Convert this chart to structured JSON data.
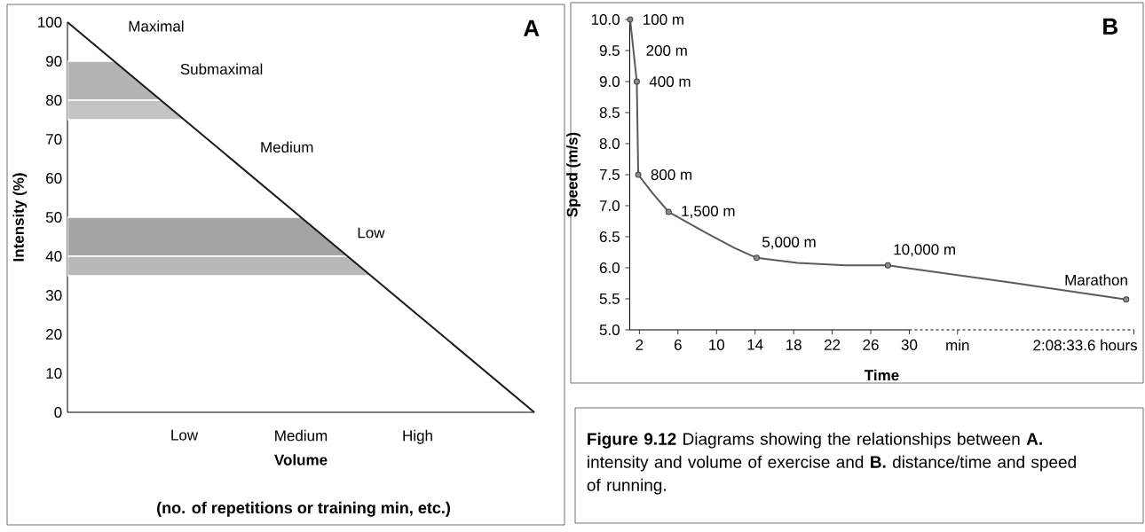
{
  "chart_data": [
    {
      "type": "line",
      "title": "A",
      "xlabel": "Volume",
      "ylabel": "Intensity (%)",
      "color": "#1a1a1a",
      "marker": "none",
      "categories": [
        null,
        "Low",
        "Medium",
        "High",
        null
      ],
      "values": [
        100,
        75,
        50,
        25,
        0
      ],
      "ylim": [
        0,
        100
      ],
      "yticks": [
        0,
        10,
        20,
        30,
        40,
        50,
        60,
        70,
        80,
        90,
        100
      ],
      "bands": [
        {
          "axis": "y",
          "from": 80,
          "to": 90,
          "color": "#b4b4b4"
        },
        {
          "axis": "y",
          "from": 75,
          "to": 80,
          "color": "#c4c4c4"
        },
        {
          "axis": "y",
          "from": 40,
          "to": 50,
          "color": "#a4a4a4"
        },
        {
          "axis": "y",
          "from": 35,
          "to": 40,
          "color": "#b8b8b8"
        }
      ],
      "annotations": [
        "(no. of repetitions or training min, etc.)",
        "Maximal",
        "Submaximal",
        "Medium",
        "Low"
      ]
    },
    {
      "type": "line",
      "title": "B",
      "xlabel": "Time",
      "ylabel": "Speed (m/s)",
      "xlim": [
        1,
        53.3
      ],
      "ylim": [
        5,
        10
      ],
      "xticks": [
        2,
        6,
        10,
        14,
        18,
        22,
        26,
        30,
        {
          "value": 35,
          "label": "min"
        },
        {
          "value": 53.3,
          "label": "2:08:33.6 hours"
        }
      ],
      "yticks": [
        {
          "value": 5,
          "label": "5.0"
        },
        {
          "value": 5.5,
          "label": "5.5"
        },
        {
          "value": 6,
          "label": "6.0"
        },
        {
          "value": 6.5,
          "label": "6.5"
        },
        {
          "value": 7,
          "label": "7.0"
        },
        {
          "value": 7.5,
          "label": "7.5"
        },
        {
          "value": 8,
          "label": "8.0"
        },
        {
          "value": 8.5,
          "label": "8.5"
        },
        {
          "value": 9,
          "label": "9.0"
        },
        {
          "value": 9.5,
          "label": "9.5"
        },
        {
          "value": 10,
          "label": "10.0"
        }
      ],
      "series": [
        {
          "type": "line",
          "color": "#5a5a5a",
          "marker": "none",
          "x": [
            1.04,
            1.73,
            1.88,
            3.42,
            5.03,
            9.17,
            11.86,
            14.16,
            18.4,
            23.4,
            27.78,
            40.6,
            52.5
          ],
          "values": [
            10.0,
            9.0,
            7.5,
            7.19,
            6.9,
            6.54,
            6.32,
            6.16,
            6.08,
            6.04,
            6.04,
            5.76,
            5.49
          ]
        },
        {
          "type": "scatter",
          "color": "#3c3c3c",
          "marker": "circle",
          "x": [
            1.04,
            1.73,
            1.88,
            5.03,
            14.16,
            27.78,
            52.5
          ],
          "values": [
            10.0,
            9.0,
            7.5,
            6.9,
            6.16,
            6.04,
            5.49
          ]
        }
      ],
      "annotations": [
        "**Figure 9.12** Diagrams showing the relationships between **A.** intensity and volume of exercise and **B.** distance/time and speed of running.",
        {
          "text": "100 m",
          "x": 1.04,
          "y": 10.0
        },
        {
          "text": "200 m",
          "x": 1.39,
          "y": 9.5
        },
        {
          "text": "400 m",
          "x": 1.73,
          "y": 9.0
        },
        {
          "text": "800 m",
          "x": 1.88,
          "y": 7.5
        },
        {
          "text": "1,500 m",
          "x": 5.03,
          "y": 6.9
        },
        {
          "text": "5,000 m",
          "x": 14.16,
          "y": 6.16
        },
        {
          "text": "10,000 m",
          "x": 27.78,
          "y": 6.04
        },
        {
          "text": "Marathon",
          "x": 52.5,
          "y": 5.49
        }
      ]
    }
  ]
}
